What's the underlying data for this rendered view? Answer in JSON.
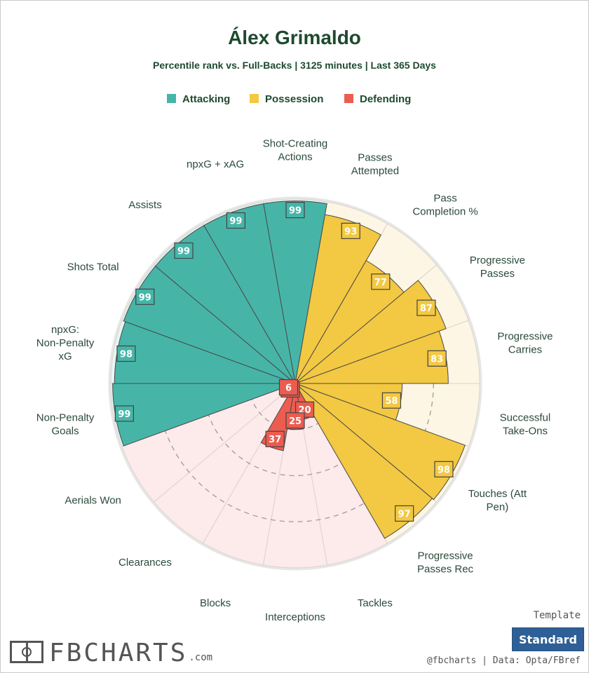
{
  "brand": {
    "name": "FBCHARTS",
    "suffix": ".com"
  },
  "template": {
    "label": "Template",
    "button_label": "Standard"
  },
  "credit": "@fbcharts  |  Data: Opta/FBref",
  "colors": {
    "attacking": "#46b5a8",
    "possession": "#f3c842",
    "defending": "#ed5c50",
    "attacking_bg": "#e8f5f3",
    "possession_bg": "#fdf6e4",
    "defending_bg": "#fdeaea",
    "title": "#1e4a2e"
  },
  "chart_data": {
    "type": "polar-bar",
    "title": "Álex Grimaldo",
    "subtitle": "Percentile rank vs. Full-Backs | 3125 minutes | Last 365 Days",
    "rlim": [
      0,
      100
    ],
    "legend": [
      {
        "name": "Attacking",
        "color": "#46b5a8"
      },
      {
        "name": "Possession",
        "color": "#f3c842"
      },
      {
        "name": "Defending",
        "color": "#ed5c50"
      }
    ],
    "legend_position": "top-center",
    "categories": [
      {
        "label": "Shot-Creating Actions",
        "value": 99,
        "group": "Attacking"
      },
      {
        "label": "Passes Attempted",
        "value": 93,
        "group": "Possession"
      },
      {
        "label": "Pass Completion %",
        "value": 77,
        "group": "Possession"
      },
      {
        "label": "Progressive Passes",
        "value": 87,
        "group": "Possession"
      },
      {
        "label": "Progressive Carries",
        "value": 83,
        "group": "Possession"
      },
      {
        "label": "Successful Take-Ons",
        "value": 58,
        "group": "Possession"
      },
      {
        "label": "Touches (Att Pen)",
        "value": 98,
        "group": "Possession"
      },
      {
        "label": "Progressive Passes Rec",
        "value": 97,
        "group": "Possession"
      },
      {
        "label": "Tackles",
        "value": 20,
        "group": "Defending"
      },
      {
        "label": "Interceptions",
        "value": 25,
        "group": "Defending"
      },
      {
        "label": "Blocks",
        "value": 37,
        "group": "Defending"
      },
      {
        "label": "Clearances",
        "value": 5,
        "group": "Defending"
      },
      {
        "label": "Aerials Won",
        "value": 6,
        "group": "Defending"
      },
      {
        "label": "Non-Penalty Goals",
        "value": 99,
        "group": "Attacking"
      },
      {
        "label": "npxG: Non-Penalty xG",
        "value": 98,
        "group": "Attacking"
      },
      {
        "label": "Shots Total",
        "value": 99,
        "group": "Attacking"
      },
      {
        "label": "Assists",
        "value": 99,
        "group": "Attacking"
      },
      {
        "label": "npxG + xAG",
        "value": 99,
        "group": "Attacking"
      }
    ]
  }
}
